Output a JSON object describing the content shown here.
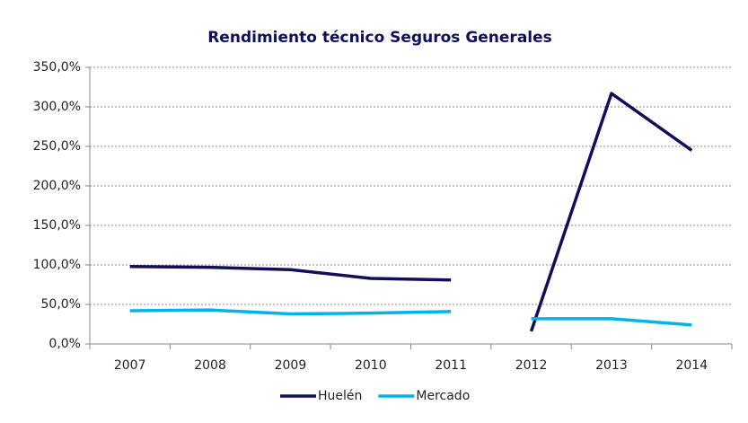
{
  "chart_data": {
    "type": "line",
    "title": "Rendimiento técnico Seguros Generales",
    "categories": [
      "2007",
      "2008",
      "2009",
      "2010",
      "2011",
      "2012",
      "2013",
      "2014"
    ],
    "gap_after": "2011",
    "series": [
      {
        "name": "Huelén",
        "color": "#0f0f5c",
        "values": [
          98,
          97,
          94,
          83,
          81,
          16,
          317,
          245
        ]
      },
      {
        "name": "Mercado",
        "color": "#00b4ea",
        "values": [
          42,
          43,
          38,
          39,
          41,
          32,
          32,
          24
        ]
      }
    ],
    "ylim": [
      0,
      350
    ],
    "yticks": [
      {
        "value": 0,
        "label": "0,0%"
      },
      {
        "value": 50,
        "label": "50,0%"
      },
      {
        "value": 100,
        "label": "100,0%"
      },
      {
        "value": 150,
        "label": "150,0%"
      },
      {
        "value": 200,
        "label": "200,0%"
      },
      {
        "value": 250,
        "label": "250,0%"
      },
      {
        "value": 300,
        "label": "300,0%"
      },
      {
        "value": 350,
        "label": "350,0%"
      }
    ],
    "grid": true,
    "legend": "bottom"
  }
}
